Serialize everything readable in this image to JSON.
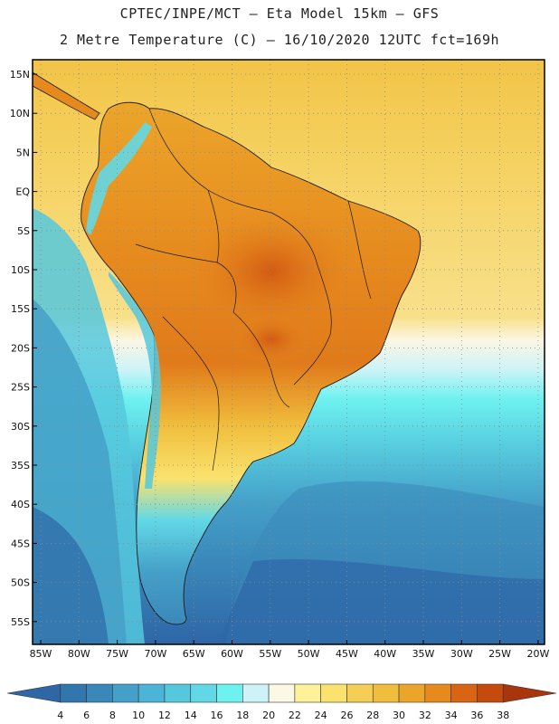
{
  "header": {
    "line1": "CPTEC/INPE/MCT –  Eta Model 15km – GFS",
    "line2": "2 Metre Temperature (C) – 16/10/2020 12UTC fct=169h"
  },
  "axes": {
    "lat_labels": [
      "15N",
      "10N",
      "5N",
      "EQ",
      "5S",
      "10S",
      "15S",
      "20S",
      "25S",
      "30S",
      "35S",
      "40S",
      "45S",
      "50S",
      "55S"
    ],
    "lon_labels": [
      "85W",
      "80W",
      "75W",
      "70W",
      "65W",
      "60W",
      "55W",
      "50W",
      "45W",
      "40W",
      "35W",
      "30W",
      "25W",
      "20W"
    ]
  },
  "colorbar": {
    "ticks": [
      "4",
      "6",
      "8",
      "10",
      "12",
      "14",
      "16",
      "18",
      "20",
      "22",
      "24",
      "26",
      "28",
      "30",
      "32",
      "34",
      "36",
      "38"
    ],
    "colors": [
      "#2e66a6",
      "#3276ae",
      "#3a88ba",
      "#44a0c8",
      "#4cb4d6",
      "#55c8dd",
      "#62d8e6",
      "#6ef2ef",
      "#cdf3f8",
      "#fcf8e6",
      "#fdf29a",
      "#fbe26e",
      "#f5cf55",
      "#f0be3c",
      "#eba52a",
      "#e68a1e",
      "#d96414",
      "#c44a0e",
      "#a8350c"
    ]
  },
  "colors": {
    "ocean_cold": "#2e66a6",
    "ocean_mid": "#44a0c8",
    "ocean_warm": "#6ef2ef",
    "tropical_sea": "#f0be3c",
    "hot_interior": "#d96414",
    "border": "#1a1a1a"
  }
}
